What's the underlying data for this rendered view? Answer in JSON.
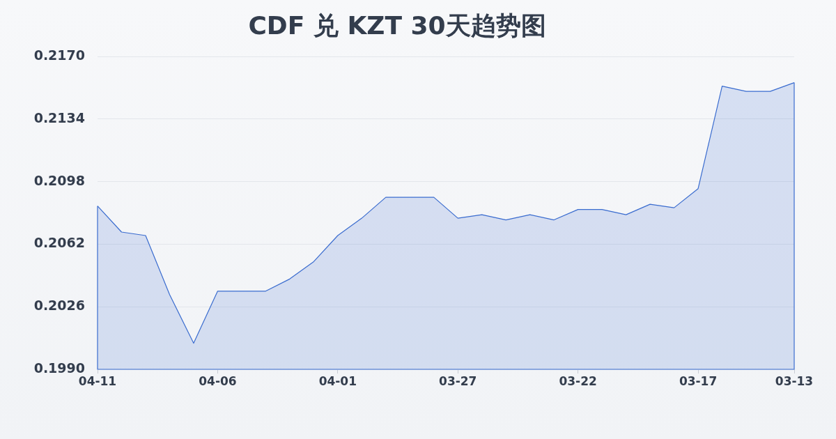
{
  "chart_data": {
    "type": "area",
    "title": "CDF 兑 KZT 30天趋势图",
    "categories": [
      "04-11",
      null,
      null,
      null,
      null,
      "04-06",
      null,
      null,
      null,
      null,
      "04-01",
      null,
      null,
      null,
      null,
      "03-27",
      null,
      null,
      null,
      null,
      "03-22",
      null,
      null,
      null,
      null,
      "03-17",
      null,
      null,
      null,
      "03-13"
    ],
    "series": [
      {
        "color": "#3a6ccf",
        "values": [
          0.2084,
          0.2069,
          0.2067,
          0.2033,
          0.2005,
          0.2035,
          0.2035,
          0.2035,
          0.2042,
          0.2052,
          0.2067,
          0.2077,
          0.2089,
          0.2089,
          0.2089,
          0.2077,
          0.2079,
          0.2076,
          0.2079,
          0.2076,
          0.2082,
          0.2082,
          0.2079,
          0.2085,
          0.2083,
          0.2094,
          0.2153,
          0.215,
          0.215,
          0.2155
        ]
      }
    ],
    "ylim": [
      0.199,
      0.217
    ],
    "yticks": [
      {
        "value": 0.199,
        "label": "0.1990"
      },
      0.2026,
      0.2062,
      0.2098,
      0.2134,
      {
        "value": 0.217,
        "label": "0.2170"
      }
    ],
    "grid": "y",
    "marker": "none"
  }
}
